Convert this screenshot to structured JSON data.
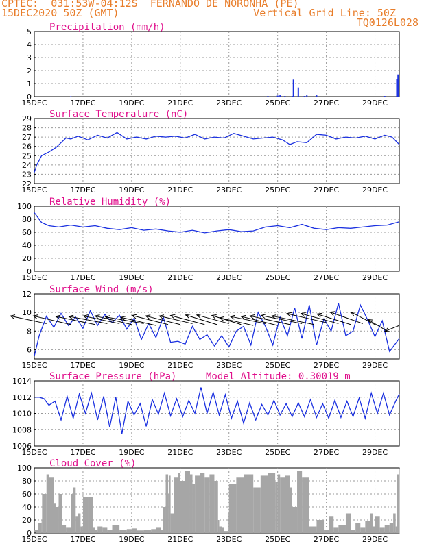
{
  "header": {
    "line1": "CPTEC:  031:53W-04:12S  FERNANDO DE NORONHA (PE)",
    "line2": "15DEC2020 50Z (GMT)",
    "right1": "Vertical Grid Line: 50Z",
    "right2": "TQ0126L028"
  },
  "colors": {
    "header": "#e87d2a",
    "title": "#e0108c",
    "line": "#1a30e0",
    "cloud": "#a6a6a6",
    "grid": "#9a9a9a"
  },
  "chart_data": [
    {
      "type": "bar",
      "id": "precip",
      "title": "Precipitation (mm/h)",
      "ylim": [
        0,
        5
      ],
      "yticks": [
        0,
        1,
        2,
        3,
        4,
        5
      ],
      "xticks": [
        "15DEC",
        "17DEC",
        "19DEC",
        "21DEC",
        "23DEC",
        "25DEC",
        "27DEC",
        "29DEC"
      ],
      "x": [
        1.5,
        9.6,
        10.0,
        10.1,
        10.3,
        10.6,
        10.65,
        10.85,
        11.1,
        11.2,
        11.6,
        14.4,
        14.9,
        14.95
      ],
      "values": [
        0.03,
        0.05,
        0.08,
        0.1,
        0.05,
        0.05,
        1.3,
        0.7,
        0.05,
        0.1,
        0.1,
        0.05,
        1.35,
        1.7
      ]
    },
    {
      "type": "line",
      "id": "temp",
      "title": "Surface Temperature (nC)",
      "ylim": [
        22,
        29
      ],
      "yticks": [
        22,
        23,
        24,
        25,
        26,
        27,
        28,
        29
      ],
      "xticks": [
        "15DEC",
        "17DEC",
        "19DEC",
        "21DEC",
        "23DEC",
        "25DEC",
        "27DEC",
        "29DEC"
      ],
      "x": [
        0,
        0.1,
        0.3,
        0.6,
        0.9,
        1.1,
        1.3,
        1.5,
        1.8,
        2.2,
        2.6,
        3.0,
        3.4,
        3.8,
        4.2,
        4.6,
        5.0,
        5.4,
        5.8,
        6.2,
        6.6,
        7.0,
        7.4,
        7.8,
        8.2,
        8.6,
        9.0,
        9.4,
        9.8,
        10.2,
        10.5,
        10.8,
        11.2,
        11.6,
        12.0,
        12.4,
        12.8,
        13.2,
        13.6,
        14.0,
        14.4,
        14.7,
        15
      ],
      "values": [
        23.2,
        24.0,
        25.0,
        25.4,
        25.9,
        26.4,
        26.9,
        26.8,
        27.1,
        26.7,
        27.2,
        26.9,
        27.5,
        26.8,
        27.0,
        26.8,
        27.1,
        27.0,
        27.1,
        26.9,
        27.3,
        26.8,
        27.0,
        26.9,
        27.4,
        27.1,
        26.8,
        26.9,
        27.0,
        26.7,
        26.2,
        26.5,
        26.4,
        27.3,
        27.2,
        26.8,
        27.0,
        26.9,
        27.1,
        26.8,
        27.2,
        27.0,
        26.2
      ]
    },
    {
      "type": "line",
      "id": "rh",
      "title": "Relative Humidity (%)",
      "ylim": [
        0,
        100
      ],
      "yticks": [
        0,
        20,
        40,
        60,
        80,
        100
      ],
      "xticks": [
        "15DEC",
        "17DEC",
        "19DEC",
        "21DEC",
        "23DEC",
        "25DEC",
        "27DEC",
        "29DEC"
      ],
      "x": [
        0,
        0.3,
        0.6,
        1.0,
        1.5,
        2.0,
        2.5,
        3.0,
        3.5,
        4.0,
        4.5,
        5.0,
        5.5,
        6.0,
        6.5,
        7.0,
        7.5,
        8.0,
        8.5,
        9.0,
        9.5,
        10.0,
        10.5,
        11.0,
        11.5,
        12.0,
        12.5,
        13.0,
        13.5,
        14.0,
        14.5,
        15.0
      ],
      "values": [
        90,
        75,
        70,
        68,
        71,
        68,
        70,
        66,
        64,
        67,
        63,
        65,
        62,
        60,
        63,
        59,
        62,
        64,
        61,
        62,
        68,
        70,
        67,
        72,
        66,
        64,
        67,
        66,
        68,
        70,
        71,
        76
      ]
    },
    {
      "type": "line",
      "id": "wind",
      "title": "Surface Wind (m/s)",
      "ylim": [
        5,
        12
      ],
      "yticks": [
        6,
        8,
        10,
        12
      ],
      "xticks": [
        "15DEC",
        "17DEC",
        "19DEC",
        "21DEC",
        "23DEC",
        "25DEC",
        "27DEC",
        "29DEC"
      ],
      "x": [
        0,
        0.2,
        0.5,
        0.8,
        1.1,
        1.4,
        1.7,
        2.0,
        2.3,
        2.6,
        2.9,
        3.2,
        3.5,
        3.8,
        4.1,
        4.4,
        4.7,
        5.0,
        5.3,
        5.6,
        5.9,
        6.2,
        6.5,
        6.8,
        7.1,
        7.4,
        7.7,
        8.0,
        8.3,
        8.6,
        8.9,
        9.2,
        9.5,
        9.8,
        10.1,
        10.4,
        10.7,
        11.0,
        11.3,
        11.6,
        11.9,
        12.2,
        12.5,
        12.8,
        13.1,
        13.4,
        13.7,
        14.0,
        14.3,
        14.6,
        15.0
      ],
      "values": [
        5.3,
        7.5,
        9.6,
        8.4,
        9.9,
        8.6,
        9.5,
        8.3,
        10.2,
        8.6,
        9.8,
        8.9,
        9.7,
        8.2,
        9.4,
        7.1,
        8.8,
        7.3,
        9.5,
        6.8,
        6.9,
        6.6,
        8.5,
        7.1,
        7.6,
        6.4,
        7.5,
        6.3,
        8.0,
        8.5,
        6.5,
        10.0,
        8.5,
        6.5,
        9.5,
        7.5,
        10.5,
        7.2,
        10.8,
        6.5,
        9.3,
        8.0,
        11.0,
        7.5,
        8.0,
        10.8,
        9.2,
        7.4,
        9.1,
        5.8,
        7.2
      ]
    },
    {
      "type": "line",
      "id": "press",
      "title": "Surface Pressure (hPa)",
      "subtitle": "Model Altitude: 0.30019 m",
      "ylim": [
        1006,
        1014
      ],
      "yticks": [
        1006,
        1008,
        1010,
        1012,
        1014
      ],
      "xticks": [
        "15DEC",
        "17DEC",
        "19DEC",
        "21DEC",
        "23DEC",
        "25DEC",
        "27DEC",
        "29DEC"
      ],
      "x": [
        0,
        0.2,
        0.4,
        0.6,
        0.85,
        1.1,
        1.35,
        1.6,
        1.85,
        2.1,
        2.35,
        2.6,
        2.85,
        3.1,
        3.35,
        3.6,
        3.85,
        4.1,
        4.35,
        4.6,
        4.85,
        5.1,
        5.35,
        5.6,
        5.85,
        6.1,
        6.35,
        6.6,
        6.85,
        7.1,
        7.35,
        7.6,
        7.85,
        8.1,
        8.35,
        8.6,
        8.85,
        9.1,
        9.35,
        9.6,
        9.85,
        10.1,
        10.35,
        10.6,
        10.85,
        11.1,
        11.35,
        11.6,
        11.85,
        12.1,
        12.35,
        12.6,
        12.85,
        13.1,
        13.35,
        13.6,
        13.85,
        14.1,
        14.35,
        14.6,
        14.85,
        15.0
      ],
      "values": [
        1012.0,
        1012.0,
        1011.8,
        1011.0,
        1011.5,
        1009.2,
        1012.1,
        1009.4,
        1012.4,
        1010.0,
        1012.5,
        1009.2,
        1012.1,
        1008.3,
        1012.0,
        1007.5,
        1011.5,
        1009.8,
        1011.2,
        1008.4,
        1011.7,
        1009.9,
        1012.5,
        1009.7,
        1011.8,
        1009.6,
        1011.6,
        1010.0,
        1013.2,
        1010.0,
        1012.6,
        1009.8,
        1012.3,
        1009.4,
        1011.5,
        1008.8,
        1011.3,
        1009.2,
        1011.1,
        1009.8,
        1011.6,
        1009.8,
        1011.2,
        1009.6,
        1011.3,
        1009.6,
        1011.7,
        1009.5,
        1011.2,
        1009.4,
        1011.6,
        1009.5,
        1011.5,
        1009.6,
        1011.9,
        1009.4,
        1012.5,
        1010.0,
        1012.5,
        1009.8,
        1011.5,
        1012.4
      ]
    },
    {
      "type": "area",
      "id": "cloud",
      "title": "Cloud Cover (%)",
      "ylim": [
        0,
        100
      ],
      "yticks": [
        0,
        20,
        40,
        60,
        80,
        100
      ],
      "xticks": [
        "15DEC",
        "17DEC",
        "19DEC",
        "21DEC",
        "23DEC",
        "25DEC",
        "27DEC",
        "29DEC"
      ],
      "x": [
        0,
        0.15,
        0.3,
        0.32,
        0.5,
        0.6,
        0.8,
        0.9,
        1.0,
        1.15,
        1.3,
        1.5,
        1.6,
        1.7,
        1.8,
        1.9,
        2.0,
        2.2,
        2.4,
        2.5,
        2.6,
        2.8,
        3.0,
        3.2,
        3.5,
        3.8,
        4.0,
        4.2,
        4.5,
        4.8,
        5.0,
        5.2,
        5.3,
        5.4,
        5.5,
        5.55,
        5.6,
        5.75,
        5.9,
        6.0,
        6.2,
        6.4,
        6.5,
        6.6,
        6.8,
        7.0,
        7.2,
        7.4,
        7.55,
        7.6,
        7.7,
        7.8,
        7.95,
        8.0,
        8.3,
        8.6,
        9.0,
        9.3,
        9.6,
        9.9,
        10.0,
        10.1,
        10.3,
        10.5,
        10.6,
        10.8,
        11.0,
        11.3,
        11.6,
        11.9,
        12.1,
        12.3,
        12.5,
        12.8,
        13.0,
        13.2,
        13.4,
        13.6,
        13.8,
        13.9,
        14.0,
        14.2,
        14.4,
        14.6,
        14.75,
        14.85,
        14.9,
        15.0
      ],
      "values": [
        5,
        15,
        20,
        60,
        90,
        85,
        45,
        40,
        60,
        12,
        8,
        60,
        70,
        25,
        30,
        10,
        55,
        55,
        8,
        5,
        10,
        8,
        5,
        12,
        5,
        6,
        7,
        4,
        5,
        6,
        8,
        5,
        40,
        90,
        60,
        88,
        30,
        85,
        92,
        80,
        95,
        90,
        75,
        88,
        92,
        85,
        90,
        80,
        20,
        10,
        8,
        3,
        30,
        75,
        85,
        90,
        70,
        88,
        92,
        78,
        90,
        85,
        88,
        70,
        40,
        95,
        85,
        10,
        20,
        5,
        25,
        8,
        12,
        30,
        5,
        15,
        8,
        18,
        30,
        10,
        25,
        8,
        12,
        15,
        30,
        10,
        90,
        98
      ]
    }
  ],
  "wind_arrows": {
    "x": [
      0.5,
      1.5,
      2.5,
      3.0,
      3.5,
      4.0,
      4.5,
      5.0,
      5.5,
      6.0,
      6.5,
      7.0,
      7.5,
      8.0,
      8.5,
      9.0,
      9.5,
      10.0,
      10.5,
      11.0,
      11.5,
      12.0,
      12.5,
      13.0,
      13.5,
      14.0,
      14.5,
      15.0
    ],
    "y": [
      8.8,
      8.7,
      8.7,
      8.8,
      8.8,
      8.7,
      8.8,
      8.6,
      8.7,
      8.7,
      8.8,
      8.7,
      8.7,
      8.8,
      8.7,
      8.6,
      8.8,
      8.6,
      8.7,
      8.8,
      8.7,
      8.9,
      8.8,
      8.7,
      8.8,
      8.7,
      8.0,
      8.6
    ],
    "u": [
      -7.5,
      -7.8,
      -8.2,
      -8.0,
      -7.5,
      -7.6,
      -8.0,
      -7.3,
      -7.5,
      -7.2,
      -6.9,
      -7.1,
      -6.5,
      -6.7,
      -6.1,
      -7.0,
      -7.3,
      -7.6,
      -8.3,
      -8.5,
      -8.8,
      -8.2,
      -7.8,
      -7.0,
      -6.8,
      -5.0,
      -4.0,
      -3.0
    ],
    "v": [
      1.6,
      1.8,
      1.7,
      1.5,
      1.6,
      1.8,
      1.4,
      1.7,
      1.9,
      1.8,
      1.6,
      1.9,
      2.0,
      1.8,
      1.9,
      1.6,
      1.5,
      1.9,
      1.8,
      1.7,
      1.8,
      1.9,
      2.1,
      2.2,
      2.4,
      2.6,
      2.4,
      -1.2
    ]
  }
}
